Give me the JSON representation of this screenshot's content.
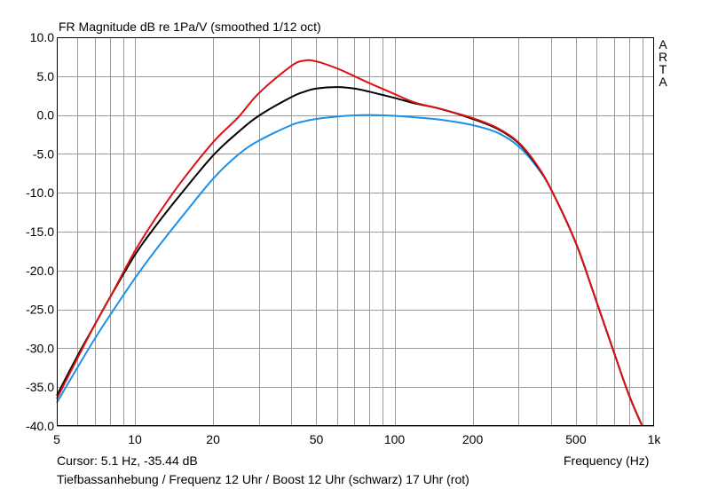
{
  "chart_data": {
    "type": "line",
    "title": "FR Magnitude dB re 1Pa/V (smoothed 1/12 oct)",
    "xlabel": "Frequency (Hz)",
    "ylabel": "",
    "xscale": "log",
    "xlim": [
      5,
      1000
    ],
    "ylim": [
      -40,
      10
    ],
    "x_ticks": [
      {
        "value": 5,
        "label": "5"
      },
      {
        "value": 10,
        "label": "10"
      },
      {
        "value": 20,
        "label": "20"
      },
      {
        "value": 50,
        "label": "50"
      },
      {
        "value": 100,
        "label": "100"
      },
      {
        "value": 200,
        "label": "200"
      },
      {
        "value": 500,
        "label": "500"
      },
      {
        "value": 1000,
        "label": "1k"
      }
    ],
    "y_ticks": [
      {
        "value": 10,
        "label": "10.0"
      },
      {
        "value": 5,
        "label": "5.0"
      },
      {
        "value": 0,
        "label": "0.0"
      },
      {
        "value": -5,
        "label": "-5.0"
      },
      {
        "value": -10,
        "label": "-10.0"
      },
      {
        "value": -15,
        "label": "-15.0"
      },
      {
        "value": -20,
        "label": "-20.0"
      },
      {
        "value": -25,
        "label": "-25.0"
      },
      {
        "value": -30,
        "label": "-30.0"
      },
      {
        "value": -35,
        "label": "-35.0"
      },
      {
        "value": -40,
        "label": "-40.0"
      }
    ],
    "grid": true,
    "x": [
      5,
      6,
      7,
      8,
      10,
      12,
      15,
      20,
      25,
      30,
      40,
      45,
      50,
      60,
      70,
      80,
      100,
      120,
      150,
      200,
      250,
      300,
      350,
      400,
      500,
      600,
      700,
      800,
      900
    ],
    "series": [
      {
        "color": "#1e90e6",
        "values": [
          -37,
          -32.5,
          -28.8,
          -25.8,
          -21,
          -17.4,
          -13.3,
          -8.2,
          -5.1,
          -3.3,
          -1.3,
          -0.8,
          -0.5,
          -0.2,
          -0.05,
          0,
          -0.1,
          -0.3,
          -0.6,
          -1.3,
          -2.3,
          -4,
          -6.5,
          -9.5,
          -16.5,
          -24,
          -30.5,
          -36,
          -40
        ]
      },
      {
        "color": "#000000",
        "values": [
          -36.1,
          -31,
          -27,
          -23.5,
          -18,
          -14.3,
          -10.2,
          -5.2,
          -2.2,
          -0.1,
          2.3,
          3,
          3.4,
          3.6,
          3.4,
          3,
          2.2,
          1.5,
          0.8,
          -0.5,
          -1.8,
          -3.6,
          -6.3,
          -9.5,
          -16.5,
          -24,
          -30.5,
          -36,
          -40
        ]
      },
      {
        "color": "#dd1111",
        "values": [
          -36.5,
          -31.3,
          -27,
          -23.5,
          -17.5,
          -13.3,
          -8.7,
          -3.5,
          -0.3,
          2.8,
          6.3,
          7,
          6.9,
          6,
          5,
          4.1,
          2.7,
          1.6,
          0.8,
          -0.4,
          -1.7,
          -3.5,
          -6.2,
          -9.5,
          -16.5,
          -24,
          -30.5,
          -36,
          -40
        ]
      }
    ]
  },
  "side_label": [
    "A",
    "R",
    "T",
    "A"
  ],
  "cursor_text": "Cursor: 5.1 Hz, -35.44 dB",
  "caption": "Tiefbassanhebung / Frequenz 12 Uhr / Boost 12 Uhr (schwarz) 17 Uhr (rot)"
}
